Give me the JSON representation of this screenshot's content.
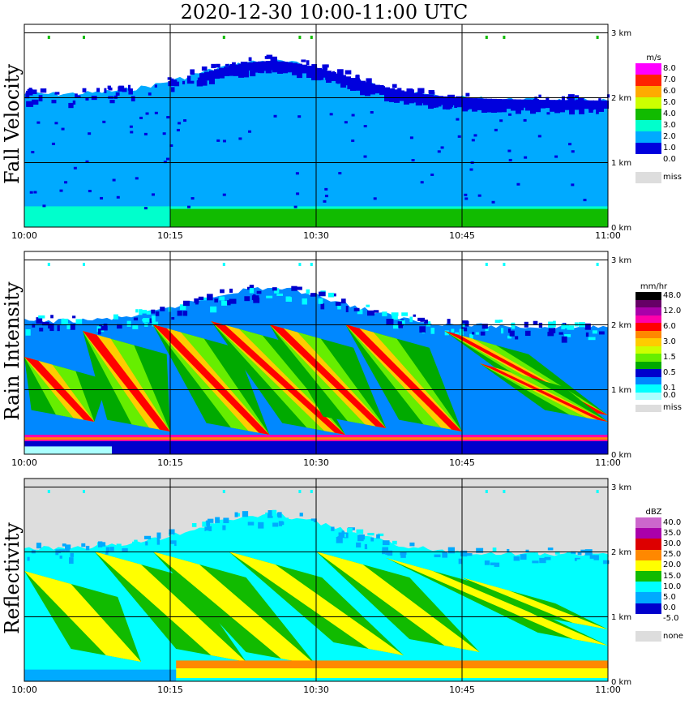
{
  "title": "2020-12-30   10:00-11:00 UTC",
  "colors": {
    "grid": "#000000",
    "miss": "#dddddd",
    "background": "#ffffff"
  },
  "chart_data": [
    {
      "type": "heatmap",
      "ylabel": "Fall Velocity",
      "units": "m/s",
      "x_ticks": [
        "10:00",
        "10:15",
        "10:30",
        "10:45",
        "11:00"
      ],
      "y_ticks": [
        "0 km",
        "1 km",
        "2 km",
        "3 km"
      ],
      "ylim": [
        0,
        3.0
      ],
      "legend": [
        {
          "label": "8.0",
          "color": "#ff00ff"
        },
        {
          "label": "7.0",
          "color": "#ff2200"
        },
        {
          "label": "6.0",
          "color": "#ffaa00"
        },
        {
          "label": "5.0",
          "color": "#ccff00"
        },
        {
          "label": "4.0",
          "color": "#11bb00"
        },
        {
          "label": "3.0",
          "color": "#00ffcc"
        },
        {
          "label": "2.0",
          "color": "#00aaff"
        },
        {
          "label": "1.0",
          "color": "#0000dd"
        },
        {
          "label": "0.0",
          "color": "#ffffff"
        },
        {
          "label": "miss",
          "color": "#dddddd"
        }
      ]
    },
    {
      "type": "heatmap",
      "ylabel": "Rain Intensity",
      "units": "mm/hr",
      "x_ticks": [
        "10:00",
        "10:15",
        "10:30",
        "10:45",
        "11:00"
      ],
      "y_ticks": [
        "0 km",
        "1 km",
        "2 km",
        "3 km"
      ],
      "ylim": [
        0,
        3.0
      ],
      "legend": [
        {
          "label": "48.0",
          "color": "#000000"
        },
        {
          "label": "",
          "color": "#660066"
        },
        {
          "label": "12.0",
          "color": "#aa00aa"
        },
        {
          "label": "",
          "color": "#ff00aa"
        },
        {
          "label": "6.0",
          "color": "#ff0000"
        },
        {
          "label": "",
          "color": "#ff8800"
        },
        {
          "label": "3.0",
          "color": "#ffcc00"
        },
        {
          "label": "",
          "color": "#ccff00"
        },
        {
          "label": "1.5",
          "color": "#66ee00"
        },
        {
          "label": "",
          "color": "#00aa00"
        },
        {
          "label": "0.5",
          "color": "#0000cc"
        },
        {
          "label": "",
          "color": "#0088ff"
        },
        {
          "label": "0.1",
          "color": "#00ffff"
        },
        {
          "label": "0.0",
          "color": "#aaffff"
        },
        {
          "label": "miss",
          "color": "#dddddd"
        }
      ]
    },
    {
      "type": "heatmap",
      "ylabel": "Reflectivity",
      "units": "dBZ",
      "x_ticks": [
        "10:00",
        "10:15",
        "10:30",
        "10:45",
        "11:00"
      ],
      "y_ticks": [
        "0 km",
        "1 km",
        "2 km",
        "3 km"
      ],
      "ylim": [
        0,
        3.0
      ],
      "legend": [
        {
          "label": "40.0",
          "color": "#cc66cc"
        },
        {
          "label": "35.0",
          "color": "#aa00aa"
        },
        {
          "label": "30.0",
          "color": "#dd0000"
        },
        {
          "label": "25.0",
          "color": "#ff8800"
        },
        {
          "label": "20.0",
          "color": "#ffff00"
        },
        {
          "label": "15.0",
          "color": "#11bb00"
        },
        {
          "label": "10.0",
          "color": "#00ffff"
        },
        {
          "label": "5.0",
          "color": "#00aaff"
        },
        {
          "label": "0.0",
          "color": "#0000cc"
        },
        {
          "label": "-5.0",
          "color": "#ffffff"
        },
        {
          "label": "none",
          "color": "#dddddd"
        }
      ]
    }
  ]
}
